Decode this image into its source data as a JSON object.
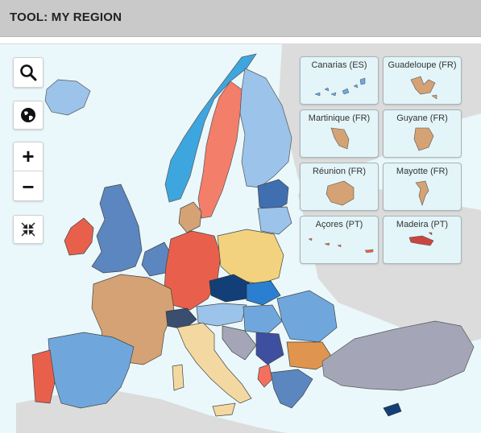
{
  "header": {
    "title": "TOOL: MY REGION"
  },
  "controls": {
    "search_icon": "search-icon",
    "globe_icon": "globe-icon",
    "zoom_in_label": "+",
    "zoom_out_label": "−",
    "extent_icon": "collapse-arrows-icon"
  },
  "insets": [
    {
      "label": "Canarias (ES)"
    },
    {
      "label": "Guadeloupe (FR)"
    },
    {
      "label": "Martinique (FR)"
    },
    {
      "label": "Guyane (FR)"
    },
    {
      "label": "Réunion (FR)"
    },
    {
      "label": "Mayotte (FR)"
    },
    {
      "label": "Açores (PT)"
    },
    {
      "label": "Madeira (PT)"
    }
  ],
  "colors": {
    "sea": "#eaf8fb",
    "non_eu_land": "#dcdcdc",
    "tan": "#d4a274",
    "red": "#e8604c",
    "salmon": "#f37e6a",
    "steel_blue": "#5b86bf",
    "light_blue": "#9cc3ea",
    "sky_blue": "#3ea6de",
    "navy": "#123f78",
    "yellow": "#f2d27e",
    "grey_violet": "#a4a6b8",
    "pale_yellow": "#f3d9a1",
    "orange": "#e0954f",
    "mid_blue": "#6fa7dd"
  }
}
